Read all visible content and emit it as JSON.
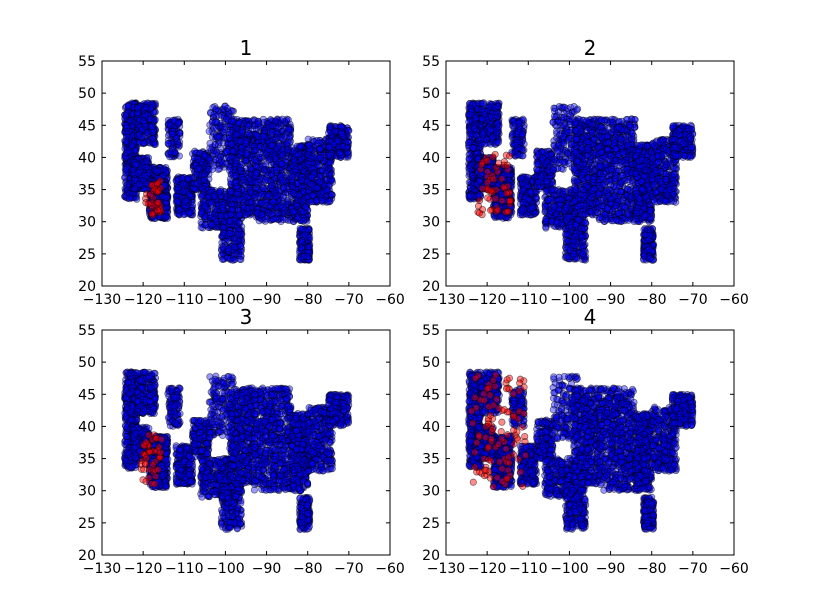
{
  "chart_data": [
    {
      "type": "scatter",
      "title": "1",
      "xlim": [
        -130,
        -60
      ],
      "ylim": [
        20,
        55
      ],
      "xticks": [
        -130,
        -120,
        -110,
        -100,
        -90,
        -80,
        -70,
        -60
      ],
      "yticks": [
        20,
        25,
        30,
        35,
        40,
        45,
        50,
        55
      ],
      "xtick_labels": [
        "−130",
        "−120",
        "−110",
        "−100",
        "−90",
        "−80",
        "−70",
        "−60"
      ],
      "ytick_labels": [
        "20",
        "25",
        "30",
        "35",
        "40",
        "45",
        "50",
        "55"
      ],
      "series": [
        {
          "color": "#0000ff",
          "region": "continental US (most points)"
        },
        {
          "color": "#ff0000",
          "region": "southern California",
          "extent": {
            "lon": [
              -119.5,
              -115.5
            ],
            "lat": [
              31,
              36.5
            ]
          }
        }
      ],
      "grid": false
    },
    {
      "type": "scatter",
      "title": "2",
      "xlim": [
        -130,
        -60
      ],
      "ylim": [
        20,
        55
      ],
      "xticks": [
        -130,
        -120,
        -110,
        -100,
        -90,
        -80,
        -70,
        -60
      ],
      "yticks": [
        20,
        25,
        30,
        35,
        40,
        45,
        50,
        55
      ],
      "xtick_labels": [
        "−130",
        "−120",
        "−110",
        "−100",
        "−90",
        "−80",
        "−70",
        "−60"
      ],
      "ytick_labels": [
        "20",
        "25",
        "30",
        "35",
        "40",
        "45",
        "50",
        "55"
      ],
      "series": [
        {
          "color": "#0000ff",
          "region": "continental US (most points)"
        },
        {
          "color": "#ff0000",
          "region": "southern California",
          "extent": {
            "lon": [
              -122.5,
              -114
            ],
            "lat": [
              31,
              40.5
            ]
          }
        }
      ],
      "grid": false
    },
    {
      "type": "scatter",
      "title": "3",
      "xlim": [
        -130,
        -60
      ],
      "ylim": [
        20,
        55
      ],
      "xticks": [
        -130,
        -120,
        -110,
        -100,
        -90,
        -80,
        -70,
        -60
      ],
      "yticks": [
        20,
        25,
        30,
        35,
        40,
        45,
        50,
        55
      ],
      "xtick_labels": [
        "−130",
        "−120",
        "−110",
        "−100",
        "−90",
        "−80",
        "−70",
        "−60"
      ],
      "ytick_labels": [
        "20",
        "25",
        "30",
        "35",
        "40",
        "45",
        "50",
        "55"
      ],
      "series": [
        {
          "color": "#0000ff",
          "region": "continental US (most points)"
        },
        {
          "color": "#ff0000",
          "region": "southern California",
          "extent": {
            "lon": [
              -120.5,
              -115.5
            ],
            "lat": [
              31,
              39
            ]
          }
        }
      ],
      "grid": false
    },
    {
      "type": "scatter",
      "title": "4",
      "xlim": [
        -130,
        -60
      ],
      "ylim": [
        20,
        55
      ],
      "xticks": [
        -130,
        -120,
        -110,
        -100,
        -90,
        -80,
        -70,
        -60
      ],
      "yticks": [
        20,
        25,
        30,
        35,
        40,
        45,
        50,
        55
      ],
      "xtick_labels": [
        "−130",
        "−120",
        "−110",
        "−100",
        "−90",
        "−80",
        "−70",
        "−60"
      ],
      "ytick_labels": [
        "20",
        "25",
        "30",
        "35",
        "40",
        "45",
        "50",
        "55"
      ],
      "series": [
        {
          "color": "#0000ff",
          "region": "continental US (most points)"
        },
        {
          "color": "#ff0000",
          "region": "California to Arizona and Pacific Northwest",
          "extent": {
            "lon": [
              -124,
              -110.5
            ],
            "lat": [
              30.5,
              48
            ]
          }
        }
      ],
      "grid": false
    }
  ]
}
